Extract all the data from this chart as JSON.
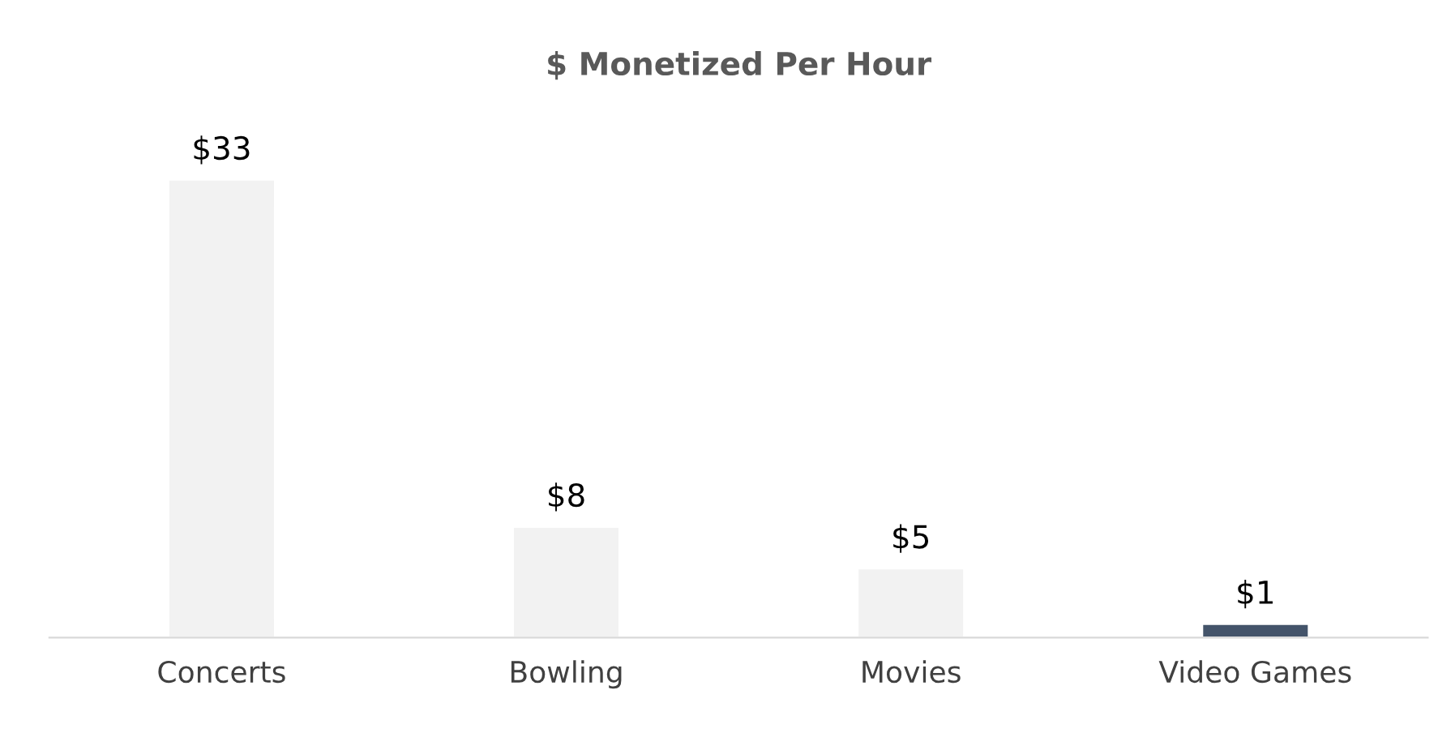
{
  "chart_data": {
    "type": "bar",
    "title": "$ Monetized Per Hour",
    "categories": [
      "Concerts",
      "Bowling",
      "Movies",
      "Video Games"
    ],
    "values": [
      33,
      8,
      5,
      1
    ],
    "value_labels": [
      "$33",
      "$8",
      "$5",
      "$1"
    ],
    "colors": [
      "#f2f2f2",
      "#f2f2f2",
      "#f2f2f2",
      "#44546a"
    ],
    "grid": false,
    "legend": false
  }
}
